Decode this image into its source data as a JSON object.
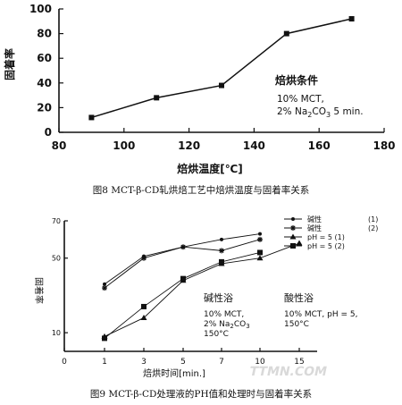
{
  "chart_data": [
    {
      "type": "line",
      "ylabel": "固着率",
      "xlabel": "焙烘温度[℃]",
      "xticks": [
        80,
        100,
        120,
        140,
        160,
        180
      ],
      "yticks": [
        0,
        20,
        40,
        60,
        80,
        100
      ],
      "xlim": [
        80,
        180
      ],
      "ylim": [
        0,
        100
      ],
      "grid": false,
      "annotation": {
        "title": "焙烘条件",
        "line1": "10% MCT,",
        "line2_prefix": "2% Na",
        "line2_sub1": "2",
        "line2_mid": "CO",
        "line2_sub2": "3",
        "line2_suffix": " 5 min."
      },
      "series": [
        {
          "marker": "square",
          "x": [
            90,
            110,
            130,
            150,
            170
          ],
          "y": [
            12,
            28,
            38,
            80,
            92
          ]
        }
      ]
    },
    {
      "type": "line",
      "ylabel": "固着率",
      "xlabel": "焙烘时间[min.]",
      "xcategories": [
        "0",
        "1",
        "3",
        "5",
        "7",
        "10",
        "15"
      ],
      "yticks": [
        "10",
        "50",
        "70"
      ],
      "ytick_values": [
        10,
        50,
        70
      ],
      "ylim": [
        0,
        70
      ],
      "grid": false,
      "legend_position": "top-right",
      "legend": [
        {
          "label": "碱性",
          "tag": "(1)",
          "marker": "dot"
        },
        {
          "label": "碱性",
          "tag": "(2)",
          "marker": "star"
        },
        {
          "label": "pH = 5 (1)",
          "tag": "",
          "marker": "triangle"
        },
        {
          "label": "pH = 5 (2)",
          "tag": "",
          "marker": "square"
        }
      ],
      "annotations": {
        "alkaline": {
          "title": "碱性浴",
          "line1": "10% MCT,",
          "line2_prefix": "2% Na",
          "line2_sub1": "2",
          "line2_mid": "CO",
          "line2_sub2": "3",
          "line3": "150°C"
        },
        "acid": {
          "title": "酸性浴",
          "line1": "10% MCT, pH = 5,",
          "line2": "150°C"
        }
      },
      "series": [
        {
          "marker": "dot",
          "x": [
            "1",
            "3",
            "5",
            "7",
            "10"
          ],
          "y": [
            36,
            51,
            56,
            60,
            63
          ]
        },
        {
          "marker": "star",
          "x": [
            "1",
            "3",
            "5",
            "7",
            "10"
          ],
          "y": [
            34,
            50,
            56,
            54,
            60
          ]
        },
        {
          "marker": "triangle",
          "x": [
            "1",
            "3",
            "5",
            "7",
            "10",
            "15"
          ],
          "y": [
            8,
            18,
            38,
            47,
            50,
            58
          ]
        },
        {
          "marker": "square",
          "x": [
            "1",
            "3",
            "5",
            "7",
            "10"
          ],
          "y": [
            7,
            24,
            39,
            48,
            53
          ]
        }
      ]
    }
  ],
  "captions": {
    "fig8": "图8  MCT-β-CD轧烘焙工艺中焙烘温度与固着率关系",
    "fig9": "图9  MCT-β-CD处理液的PH值和处理时与固着率关系"
  },
  "watermark": "TTMN.COM"
}
